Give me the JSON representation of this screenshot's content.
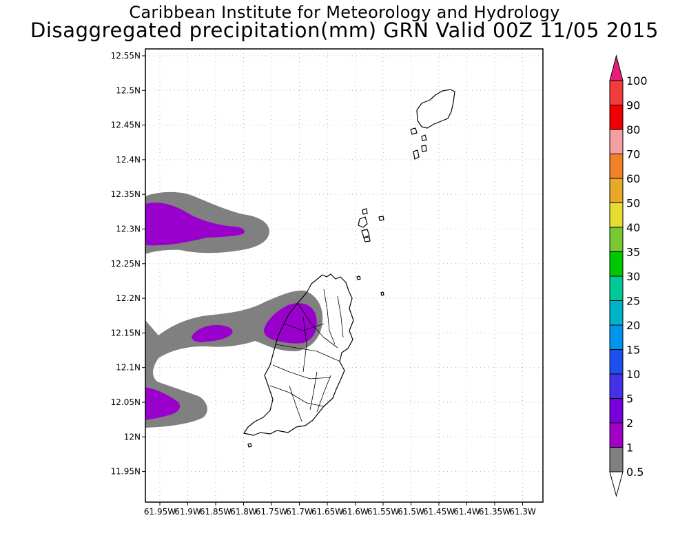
{
  "header": {
    "title_line1": "Caribbean Institute for Meteorology and Hydrology",
    "title_line2": "Disaggregated precipitation(mm) GRN Valid 00Z 11/05 2015"
  },
  "map": {
    "lat_range": [
      11.9,
      12.58
    ],
    "lon_range": [
      -61.97,
      -61.26
    ],
    "lat_ticks": [
      "12.55N",
      "12.5N",
      "12.45N",
      "12.4N",
      "12.35N",
      "12.3N",
      "12.25N",
      "12.2N",
      "12.15N",
      "12.1N",
      "12.05N",
      "12N",
      "11.95N"
    ],
    "lon_ticks": [
      "61.95W",
      "61.9W",
      "61.85W",
      "61.8W",
      "61.75W",
      "61.7W",
      "61.65W",
      "61.6W",
      "61.55W",
      "61.5W",
      "61.45W",
      "61.4W",
      "61.35W",
      "61.3W"
    ],
    "grid": true,
    "land_fill": "#ffffff",
    "coast_color": "#000000"
  },
  "precip_colors": {
    "gray": "#808080",
    "purple": "#9900cc"
  },
  "colorbar": {
    "labels": [
      "0.5",
      "1",
      "2",
      "5",
      "10",
      "15",
      "20",
      "25",
      "30",
      "35",
      "40",
      "50",
      "60",
      "70",
      "80",
      "90",
      "100"
    ],
    "colors": [
      "#808080",
      "#a000c8",
      "#7800dc",
      "#4632e6",
      "#1e50f0",
      "#0096f0",
      "#00b4c8",
      "#00c896",
      "#00c800",
      "#78c832",
      "#e6dc32",
      "#e6aa28",
      "#f08228",
      "#f5a0a0",
      "#f00000",
      "#f03c3c",
      "#e61e7a"
    ],
    "under_color": "#ffffff"
  }
}
